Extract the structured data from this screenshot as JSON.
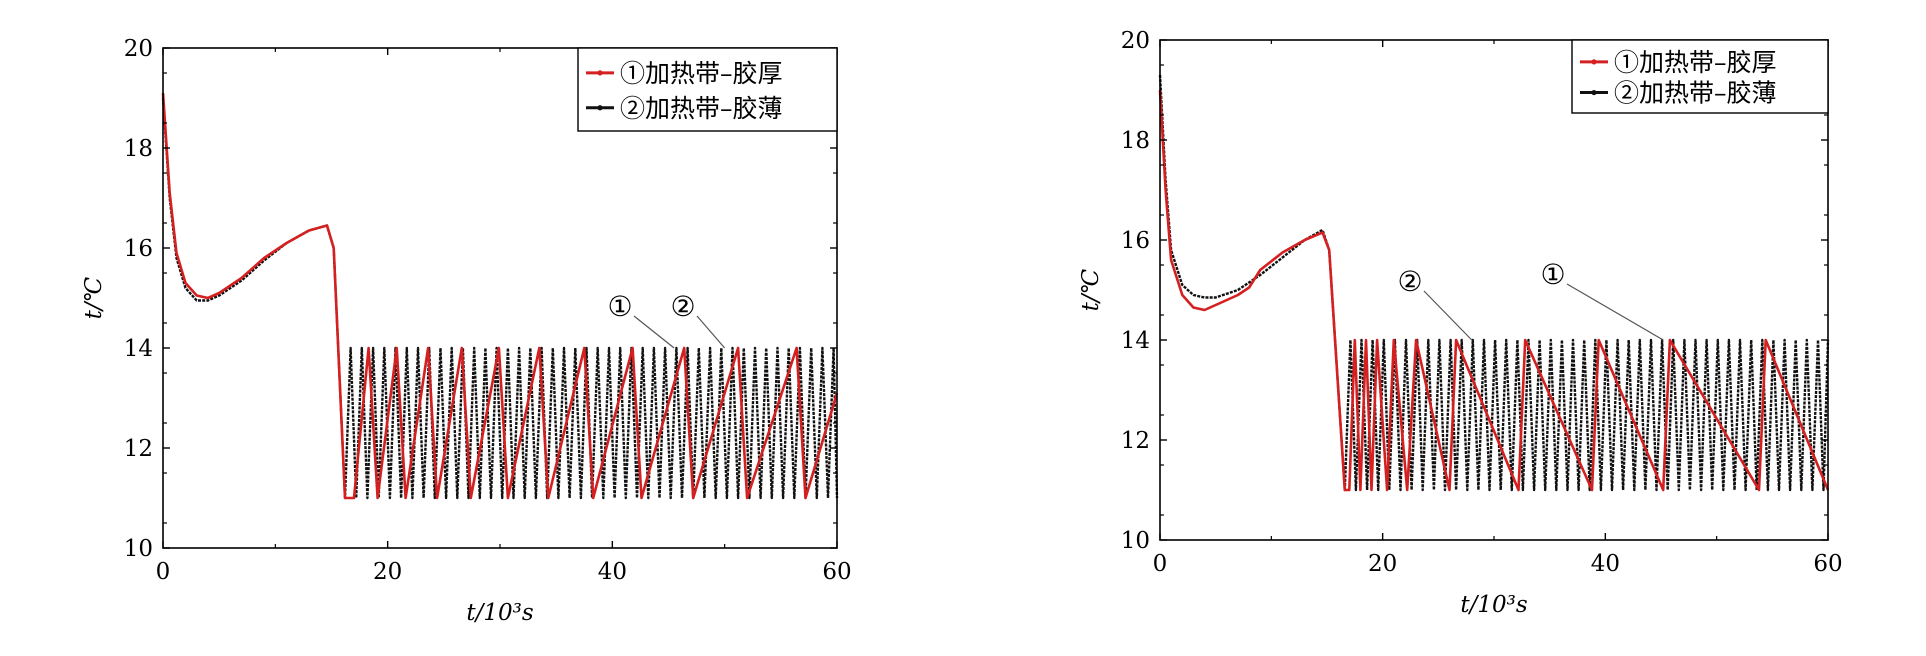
{
  "chart_data": [
    {
      "type": "line",
      "xlabel": "t/10³s",
      "ylabel": "t/℃",
      "xlim": [
        0,
        60
      ],
      "ylim": [
        10,
        20
      ],
      "x_ticks": [
        "0",
        "20",
        "40",
        "60"
      ],
      "y_ticks": [
        "10",
        "12",
        "14",
        "16",
        "18",
        "20"
      ],
      "grid": false,
      "legend_position": "top-right",
      "series": [
        {
          "name": "①加热带–胶厚",
          "color": "#d42020",
          "x": [
            0,
            0.6,
            1.2,
            2,
            3,
            4,
            5,
            7,
            9,
            11,
            13,
            14.6,
            15.2,
            16.2,
            17.0,
            18.3,
            19.1,
            20.8,
            21.6,
            23.6,
            24.4,
            26.6,
            27.4,
            29.9,
            30.7,
            33.5,
            34.3,
            37.5,
            38.3,
            41.8,
            42.6,
            46.4,
            47.2,
            51.2,
            52.0,
            56.4,
            57.2,
            60
          ],
          "y": [
            19.1,
            17.1,
            15.9,
            15.3,
            15.05,
            15.0,
            15.1,
            15.4,
            15.8,
            16.1,
            16.35,
            16.45,
            16.0,
            11.0,
            11.0,
            14.0,
            11.0,
            14.0,
            11.0,
            14.0,
            11.0,
            14.0,
            11.0,
            14.0,
            11.0,
            14.0,
            11.0,
            14.0,
            11.0,
            14.0,
            11.0,
            14.0,
            11.0,
            14.0,
            11.0,
            14.0,
            11.0,
            13.1
          ]
        },
        {
          "name": "②加热带–胶薄",
          "color": "#111111",
          "x": [
            0,
            0.6,
            1.2,
            2,
            3,
            4,
            5,
            7,
            9,
            11,
            13,
            14.6,
            15.2,
            16.2,
            60
          ],
          "y": [
            19.0,
            17.0,
            15.8,
            15.2,
            14.95,
            14.95,
            15.05,
            15.35,
            15.75,
            16.1,
            16.35,
            16.45,
            16.0,
            11.0,
            11.0
          ],
          "oscillation": {
            "start": 16.2,
            "period": 1.0,
            "min": 11.0,
            "max": 14.0
          }
        }
      ],
      "annotations": [
        {
          "label": "①",
          "target_x": 45.5,
          "target_y": 14.0
        },
        {
          "label": "②",
          "target_x": 50.0,
          "target_y": 14.0
        }
      ]
    },
    {
      "type": "line",
      "xlabel": "t/10³s",
      "ylabel": "t/℃",
      "xlim": [
        0,
        60
      ],
      "ylim": [
        10,
        20
      ],
      "x_ticks": [
        "0",
        "20",
        "40",
        "60"
      ],
      "y_ticks": [
        "10",
        "12",
        "14",
        "16",
        "18",
        "20"
      ],
      "grid": false,
      "legend_position": "top-right",
      "series": [
        {
          "name": "①加热带–胶厚",
          "color": "#d42020",
          "x": [
            0,
            0.5,
            1.0,
            2,
            3,
            4,
            5,
            7,
            8,
            9,
            11,
            13,
            14.6,
            15.2,
            16.6,
            17.0,
            17.5,
            18.0,
            18.5,
            19.0,
            19.5,
            20.4,
            21.0,
            22.2,
            23.0,
            26.0,
            26.6,
            32.2,
            32.8,
            38.8,
            39.4,
            45.2,
            45.8,
            53.8,
            54.4,
            60
          ],
          "y": [
            19.0,
            17.0,
            15.6,
            14.9,
            14.65,
            14.6,
            14.7,
            14.9,
            15.05,
            15.4,
            15.75,
            16.0,
            16.15,
            15.8,
            11.0,
            11.0,
            14.0,
            11.0,
            14.0,
            11.0,
            14.0,
            11.0,
            14.0,
            11.0,
            14.0,
            11.0,
            14.0,
            11.0,
            14.0,
            11.0,
            14.0,
            11.0,
            14.0,
            11.0,
            14.0,
            11.0
          ]
        },
        {
          "name": "②加热带–胶薄",
          "color": "#111111",
          "x": [
            0,
            0.5,
            1.0,
            2,
            3,
            4,
            5,
            7,
            9,
            11,
            13,
            14.6,
            15.2,
            16.6,
            60
          ],
          "y": [
            19.3,
            17.2,
            15.8,
            15.1,
            14.9,
            14.85,
            14.85,
            15.0,
            15.3,
            15.65,
            16.0,
            16.2,
            15.8,
            11.0,
            11.0
          ],
          "oscillation": {
            "start": 16.6,
            "period": 1.0,
            "min": 11.0,
            "max": 14.0
          }
        }
      ],
      "annotations": [
        {
          "label": "②",
          "target_x": 28.0,
          "target_y": 14.0
        },
        {
          "label": "①",
          "target_x": 45.2,
          "target_y": 14.0
        }
      ]
    }
  ]
}
